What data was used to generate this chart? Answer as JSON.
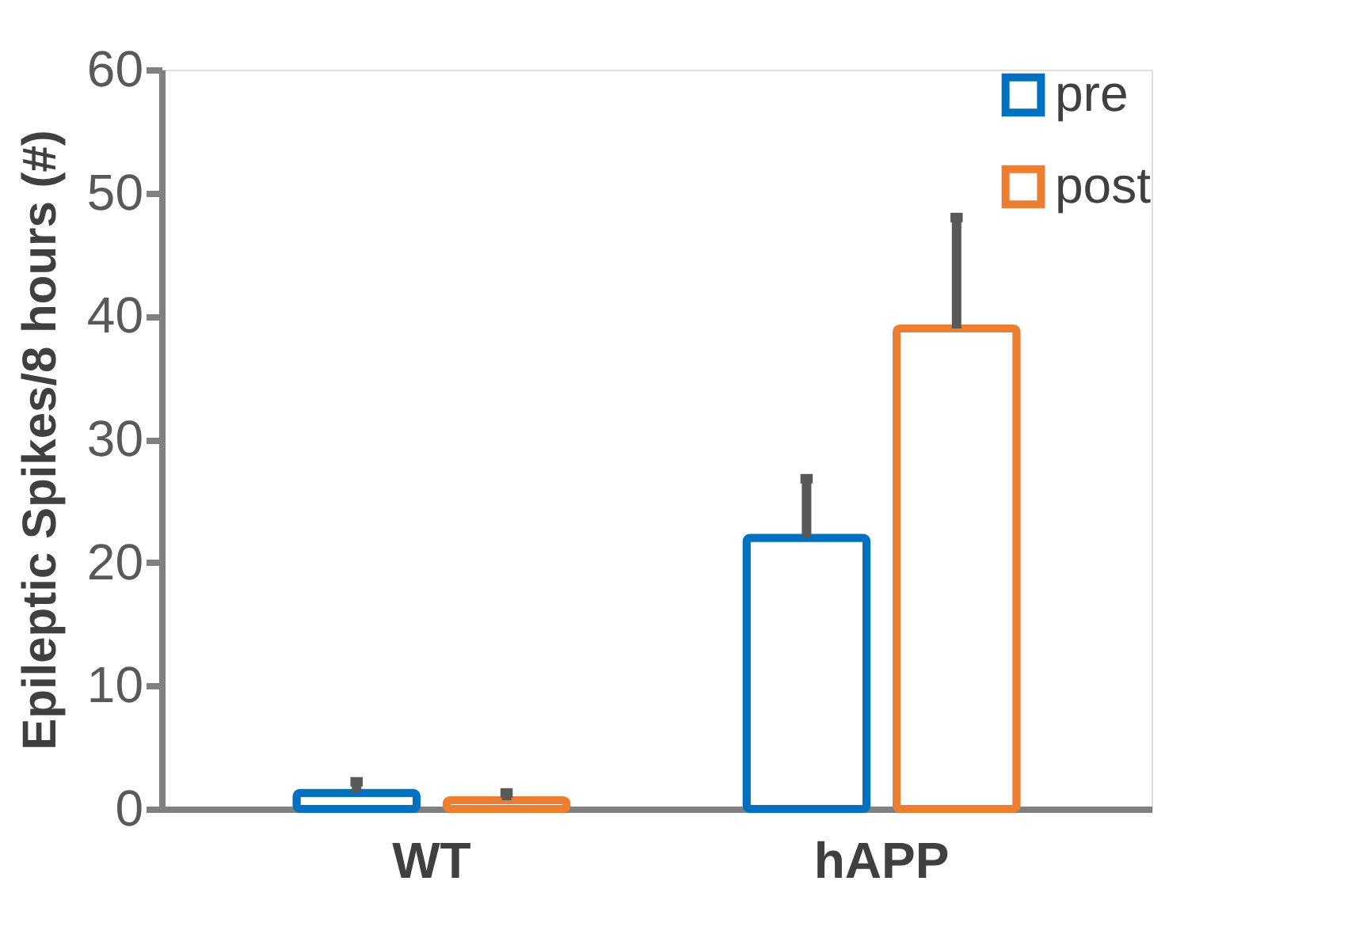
{
  "chart_data": {
    "type": "bar",
    "ylabel": "Epileptic Spikes/8 hours (#)",
    "categories": [
      "WT",
      "hAPP"
    ],
    "series": [
      {
        "name": "pre",
        "color": "#0070c0",
        "values": [
          1.3,
          22
        ],
        "errors": [
          [
            1.3,
            2.2
          ],
          [
            22,
            26.8
          ]
        ]
      },
      {
        "name": "post",
        "color": "#ed7d31",
        "values": [
          0.7,
          39
        ],
        "errors": [
          [
            0.7,
            1.3
          ],
          [
            39,
            48
          ]
        ]
      }
    ],
    "ylim": [
      0,
      60
    ],
    "yticks": [
      0,
      10,
      20,
      30,
      40,
      50,
      60
    ],
    "grid": false,
    "legend": "top right"
  }
}
